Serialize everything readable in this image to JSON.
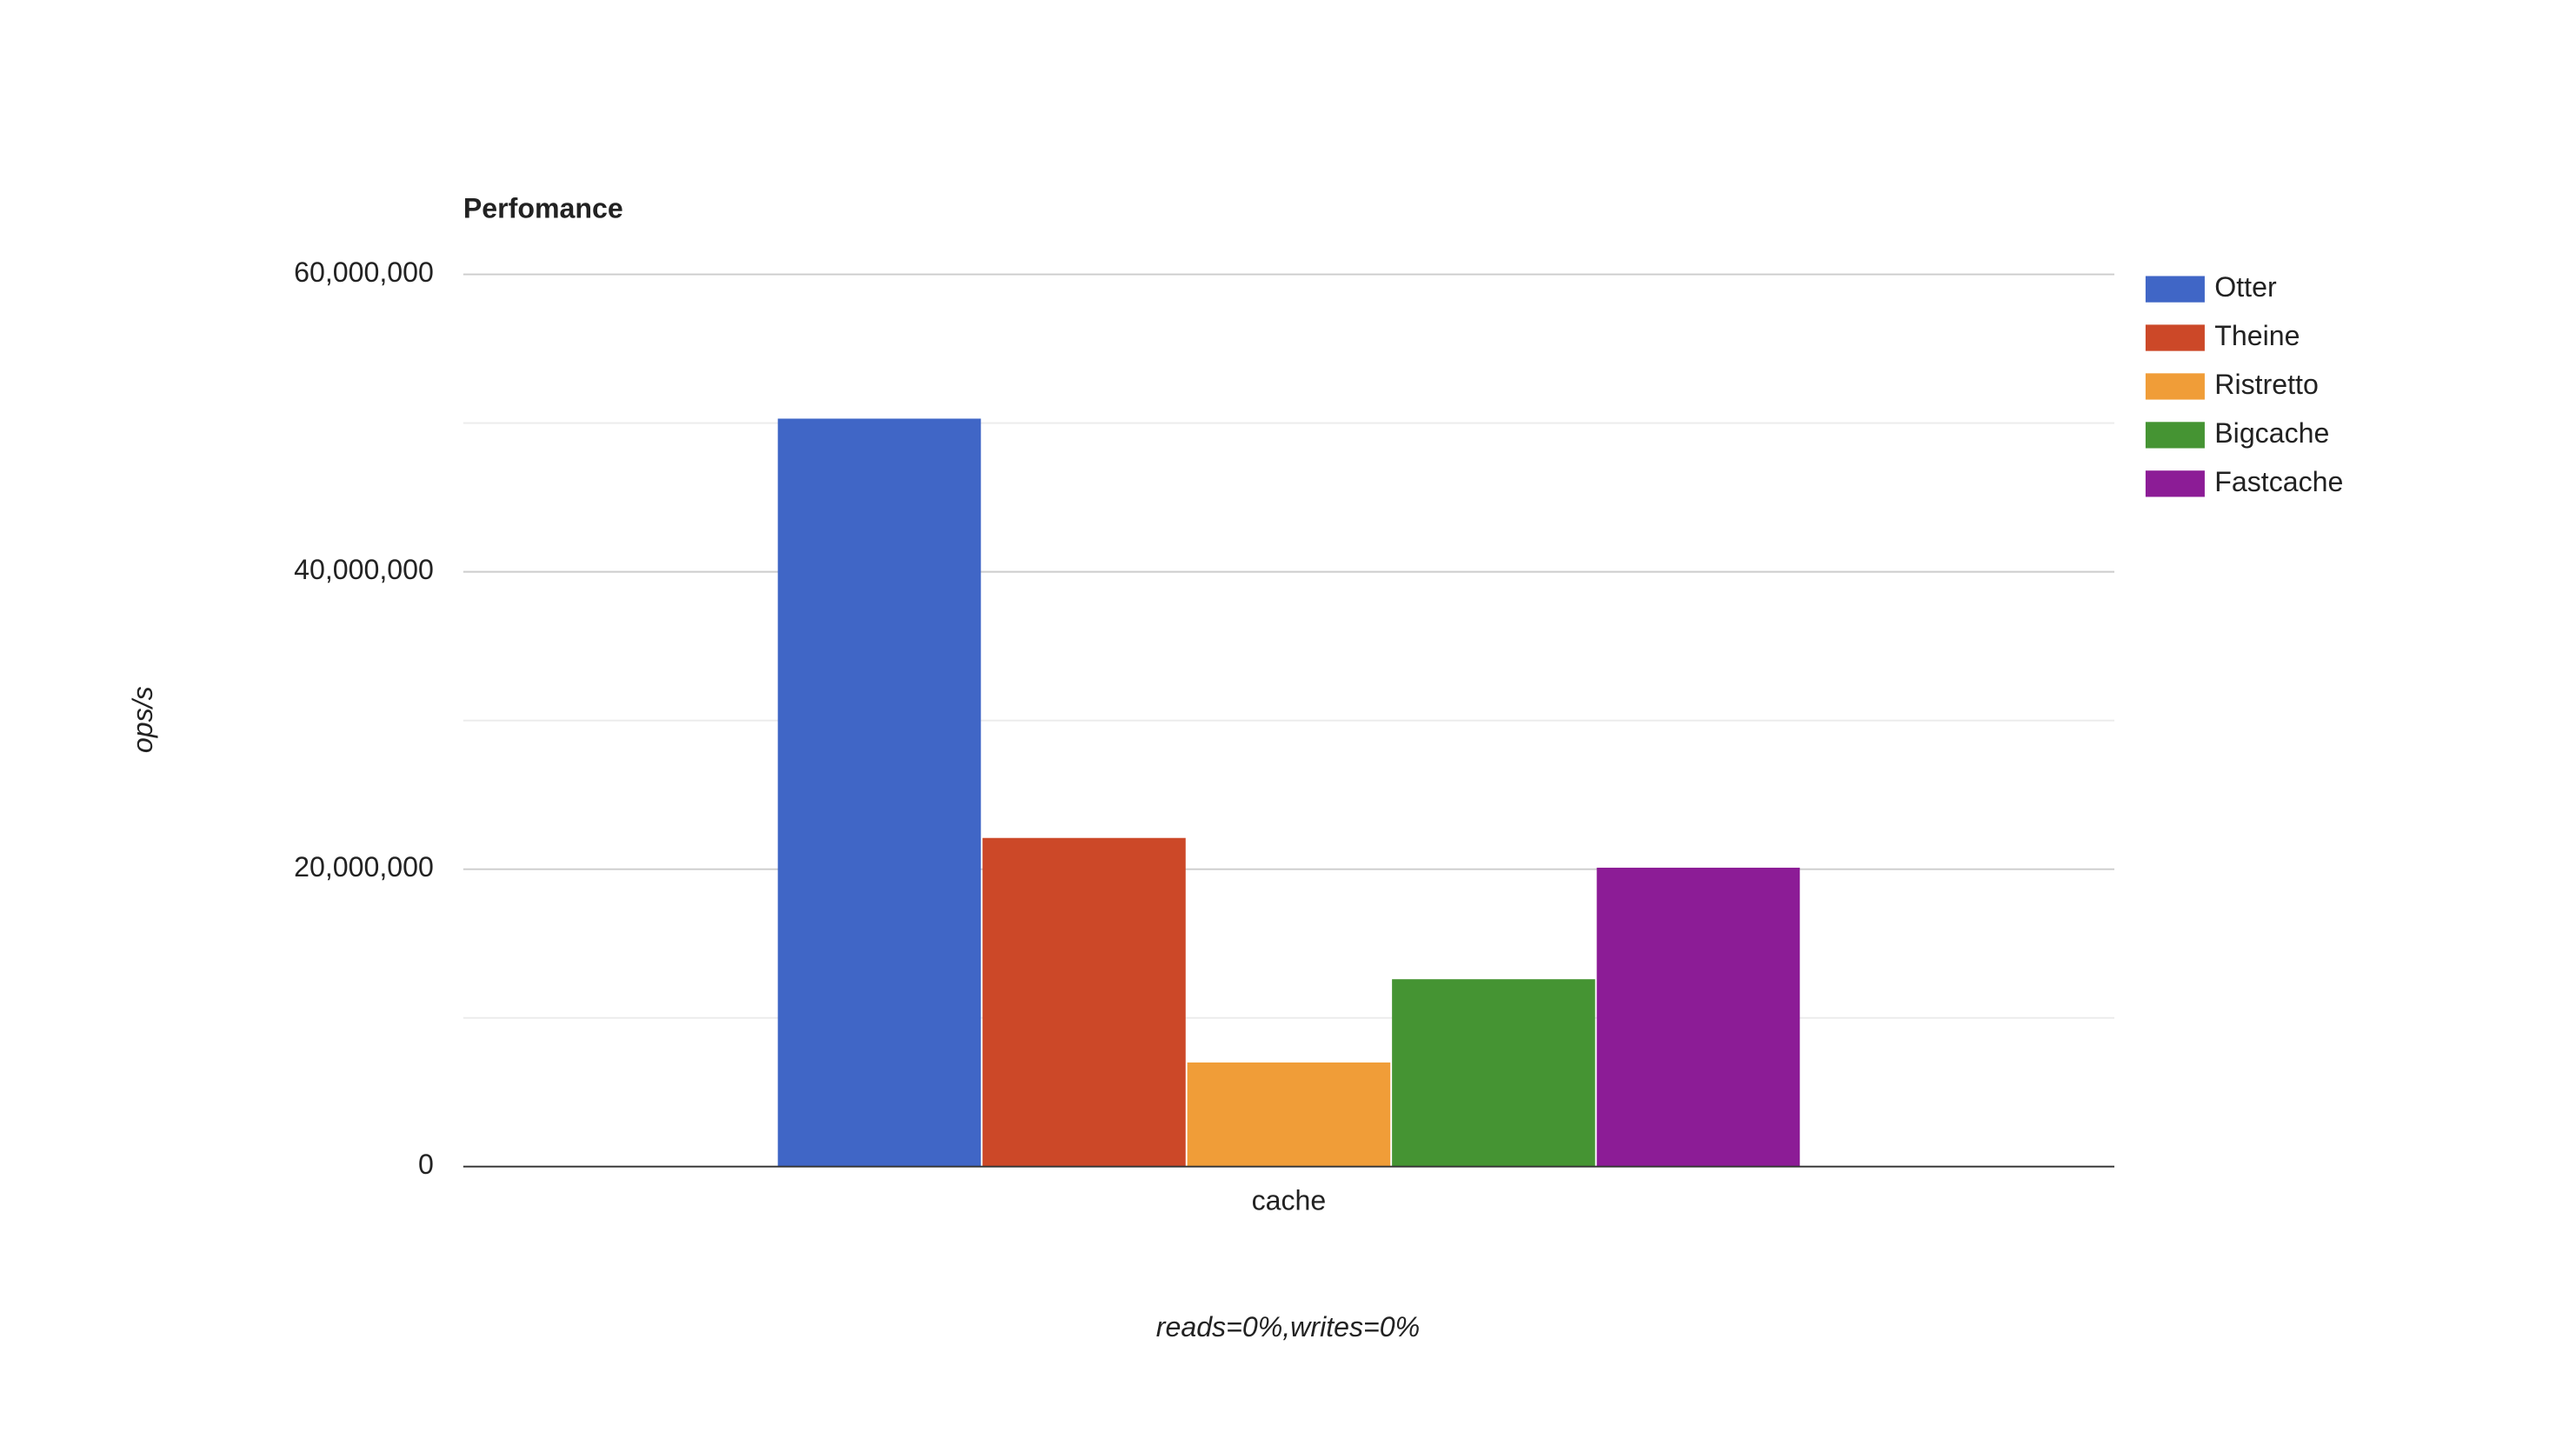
{
  "chart_data": {
    "type": "bar",
    "title": "Perfomance",
    "x_label": "reads=0%,writes=0%",
    "y_label": "ops/s",
    "categories": [
      "cache"
    ],
    "series": [
      {
        "name": "Otter",
        "color": "#4066c6",
        "values": [
          50300000
        ]
      },
      {
        "name": "Theine",
        "color": "#cc4828",
        "values": [
          22100000
        ]
      },
      {
        "name": "Ristretto",
        "color": "#f09d38",
        "values": [
          7000000
        ]
      },
      {
        "name": "Bigcache",
        "color": "#459433",
        "values": [
          12600000
        ]
      },
      {
        "name": "Fastcache",
        "color": "#8c1c96",
        "values": [
          20100000
        ]
      }
    ],
    "ylim": [
      0,
      60000000
    ],
    "yticks": [
      0,
      {
        "value": 20000000,
        "label": "20,000,000"
      },
      {
        "value": 40000000,
        "label": "40,000,000"
      },
      {
        "value": 60000000,
        "label": "60,000,000"
      }
    ],
    "minor_yticks": [
      10000000,
      30000000,
      50000000
    ],
    "grid": true,
    "legend": "right"
  }
}
